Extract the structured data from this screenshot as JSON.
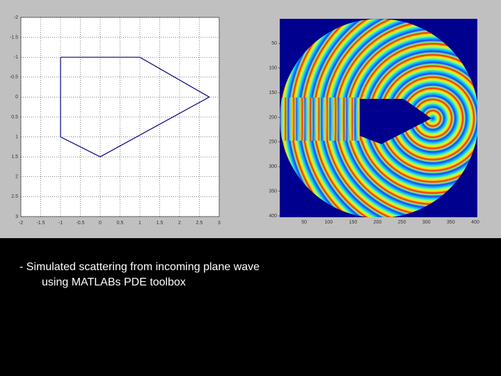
{
  "chart_data": [
    {
      "type": "line",
      "x": [
        -1,
        1,
        2.75,
        0,
        -1,
        -1
      ],
      "y": [
        -1,
        -1,
        0,
        1.5,
        1,
        -1
      ],
      "color": "#000080",
      "xlim": [
        -2,
        3
      ],
      "ylim": [
        -2,
        3
      ],
      "y_reversed": true,
      "grid": true,
      "xticks": [
        -2,
        -1.5,
        -1,
        -0.5,
        0,
        0.5,
        1,
        1.5,
        2,
        2.5,
        3
      ],
      "yticks": [
        -2,
        -1.5,
        -1,
        -0.5,
        0,
        0.5,
        1,
        1.5,
        2,
        2.5,
        3
      ]
    },
    {
      "type": "heatmap",
      "xlim": [
        0,
        400
      ],
      "ylim": [
        0,
        400
      ],
      "y_reversed": true,
      "xticks": [
        50,
        100,
        150,
        200,
        250,
        300,
        350,
        400
      ],
      "yticks": [
        50,
        100,
        150,
        200,
        250,
        300,
        350,
        400
      ]
    }
  ],
  "caption": [
    "- Simulated scattering from incoming plane wave",
    "using MATLABs PDE toolbox"
  ]
}
